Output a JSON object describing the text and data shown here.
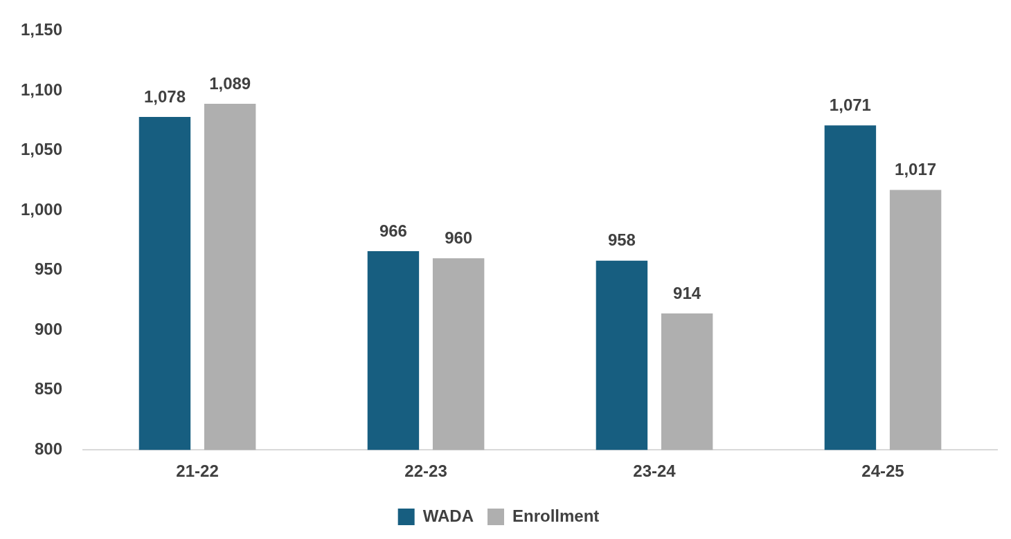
{
  "chart_data": {
    "type": "bar",
    "categories": [
      "21-22",
      "22-23",
      "23-24",
      "24-25"
    ],
    "series": [
      {
        "name": "WADA",
        "color": "#175e80",
        "values": [
          1078,
          966,
          958,
          1071
        ],
        "value_labels": [
          "1,078",
          "966",
          "958",
          "1,071"
        ]
      },
      {
        "name": "Enrollment",
        "color": "#afafaf",
        "values": [
          1089,
          960,
          914,
          1017
        ],
        "value_labels": [
          "1,089",
          "960",
          "914",
          "1,017"
        ]
      }
    ],
    "ylim": [
      800,
      1150
    ],
    "yticks": [
      {
        "value": 800,
        "label": "800"
      },
      {
        "value": 850,
        "label": "850"
      },
      {
        "value": 900,
        "label": "900"
      },
      {
        "value": 950,
        "label": "950"
      },
      {
        "value": 1000,
        "label": "1,000"
      },
      {
        "value": 1050,
        "label": "1,050"
      },
      {
        "value": 1100,
        "label": "1,100"
      },
      {
        "value": 1150,
        "label": "1,150"
      }
    ],
    "grid": false,
    "legend": "bottom"
  }
}
